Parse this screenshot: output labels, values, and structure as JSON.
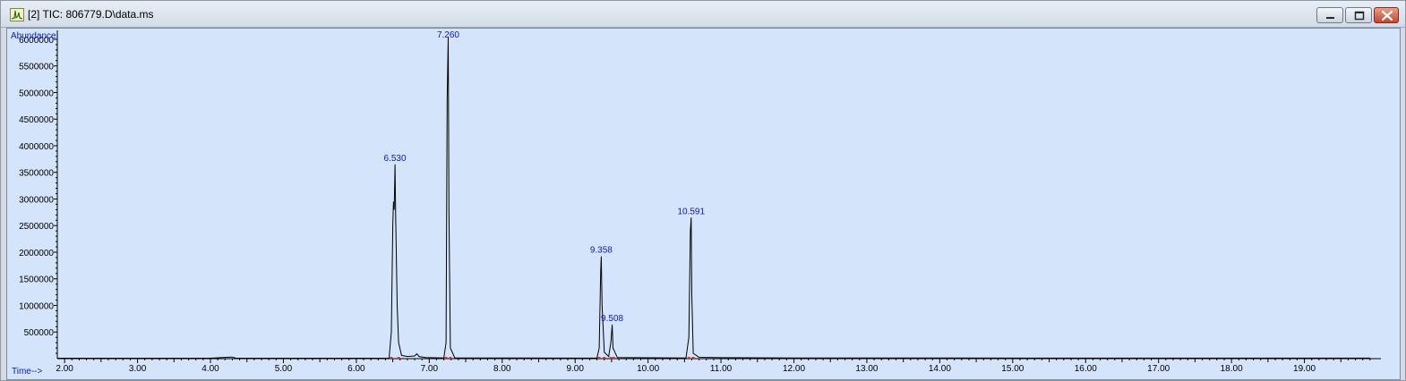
{
  "window": {
    "title": "[2] TIC: 806779.D\\data.ms",
    "icon": "chromatogram-icon",
    "buttons": [
      "minimize-icon",
      "maximize-icon",
      "close-icon"
    ]
  },
  "colors": {
    "plot_background": "#d4e4fa",
    "trace": "#000000",
    "peak_label": "#0b18d0",
    "baseline_marker": "#e03030"
  },
  "chart_data": {
    "type": "line",
    "title": "TIC: 806779.D\\data.ms",
    "ylabel": "Abundance",
    "xlabel": "Time-->",
    "xlim": [
      1.9,
      20.0
    ],
    "ylim": [
      0,
      6100000
    ],
    "x_ticks": [
      2.0,
      3.0,
      4.0,
      5.0,
      6.0,
      7.0,
      8.0,
      9.0,
      10.0,
      11.0,
      12.0,
      13.0,
      14.0,
      15.0,
      16.0,
      17.0,
      18.0,
      19.0
    ],
    "x_tick_labels": [
      "2.00",
      "3.00",
      "4.00",
      "5.00",
      "6.00",
      "7.00",
      "8.00",
      "9.00",
      "10.00",
      "11.00",
      "12.00",
      "13.00",
      "14.00",
      "15.00",
      "16.00",
      "17.00",
      "18.00",
      "19.00"
    ],
    "y_ticks": [
      500000,
      1000000,
      1500000,
      2000000,
      2500000,
      3000000,
      3500000,
      4000000,
      4500000,
      5000000,
      5500000,
      6000000
    ],
    "y_tick_labels": [
      "500000",
      "1000000",
      "1500000",
      "2000000",
      "2500000",
      "3000000",
      "3500000",
      "4000000",
      "4500000",
      "5000000",
      "5500000",
      "6000000"
    ],
    "peaks": [
      {
        "label": "6.530",
        "x": 6.53,
        "y": 3650000
      },
      {
        "label": "7.260",
        "x": 7.26,
        "y": 6050000
      },
      {
        "label": "9.358",
        "x": 9.358,
        "y": 1920000
      },
      {
        "label": "9.508",
        "x": 9.508,
        "y": 640000
      },
      {
        "label": "10.591",
        "x": 10.591,
        "y": 2650000
      }
    ],
    "series": [
      {
        "name": "TIC",
        "points": [
          [
            1.9,
            8000
          ],
          [
            4.0,
            9000
          ],
          [
            4.3,
            30000
          ],
          [
            4.35,
            8000
          ],
          [
            6.45,
            8000
          ],
          [
            6.48,
            500000
          ],
          [
            6.5,
            2500000
          ],
          [
            6.51,
            2950000
          ],
          [
            6.52,
            2800000
          ],
          [
            6.53,
            3650000
          ],
          [
            6.54,
            2600000
          ],
          [
            6.56,
            1000000
          ],
          [
            6.58,
            300000
          ],
          [
            6.62,
            60000
          ],
          [
            6.7,
            40000
          ],
          [
            6.8,
            50000
          ],
          [
            6.83,
            90000
          ],
          [
            6.86,
            40000
          ],
          [
            6.95,
            20000
          ],
          [
            7.2,
            12000
          ],
          [
            7.23,
            300000
          ],
          [
            7.245,
            4850000
          ],
          [
            7.26,
            6050000
          ],
          [
            7.27,
            2800000
          ],
          [
            7.29,
            200000
          ],
          [
            7.35,
            15000
          ],
          [
            9.3,
            10000
          ],
          [
            9.33,
            200000
          ],
          [
            9.35,
            1600000
          ],
          [
            9.358,
            1920000
          ],
          [
            9.37,
            1000000
          ],
          [
            9.4,
            120000
          ],
          [
            9.46,
            40000
          ],
          [
            9.49,
            300000
          ],
          [
            9.508,
            640000
          ],
          [
            9.52,
            200000
          ],
          [
            9.58,
            20000
          ],
          [
            10.52,
            12000
          ],
          [
            10.56,
            400000
          ],
          [
            10.58,
            2400000
          ],
          [
            10.591,
            2650000
          ],
          [
            10.6,
            1200000
          ],
          [
            10.62,
            100000
          ],
          [
            10.7,
            25000
          ],
          [
            11.0,
            18000
          ],
          [
            12.0,
            14000
          ],
          [
            14.0,
            12000
          ],
          [
            19.9,
            10000
          ]
        ]
      }
    ],
    "baseline_markers": [
      6.48,
      6.58,
      7.23,
      7.29,
      9.33,
      9.4,
      9.49,
      9.53,
      10.56,
      10.62
    ]
  }
}
